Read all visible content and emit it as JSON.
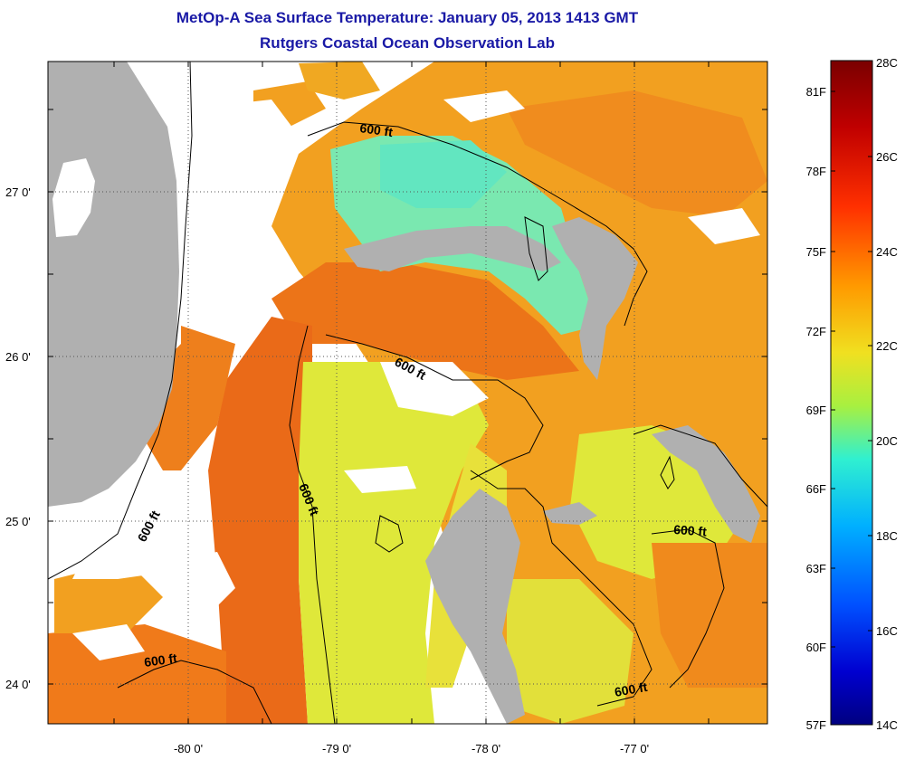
{
  "header": {
    "title": "MetOp-A Sea Surface Temperature:  January 05, 2013 1413 GMT",
    "subtitle": "Rutgers Coastal Ocean Observation Lab"
  },
  "axes": {
    "lat_labels": [
      "27 0'",
      "26 0'",
      "25 0'",
      "24 0'"
    ],
    "lon_labels": [
      "-80 0'",
      "-79 0'",
      "-78 0'",
      "-77 0'"
    ]
  },
  "contour_label": "600 ft",
  "colorbar": {
    "celsius": [
      "28C",
      "26C",
      "24C",
      "22C",
      "20C",
      "18C",
      "16C",
      "14C"
    ],
    "fahrenheit": [
      "81F",
      "78F",
      "75F",
      "72F",
      "69F",
      "66F",
      "63F",
      "60F",
      "57F"
    ]
  },
  "colors": {
    "land": "#b0b0b0",
    "no_data": "#ffffff",
    "title": "#1a1aa6",
    "sst_orange": "#f29a1f",
    "sst_dark_orange": "#ea6a18",
    "sst_yellow": "#e6ea3a",
    "sst_cyan": "#6fe6b0"
  }
}
